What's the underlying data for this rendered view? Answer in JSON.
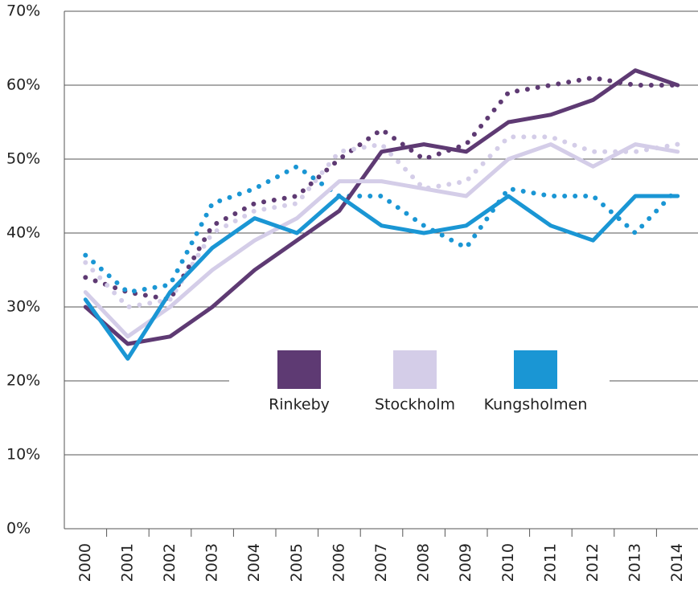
{
  "chart_data": {
    "type": "line",
    "categories": [
      "2000",
      "2001",
      "2002",
      "2003",
      "2004",
      "2005",
      "2006",
      "2007",
      "2008",
      "2009",
      "2010",
      "2011",
      "2012",
      "2013",
      "2014"
    ],
    "series": [
      {
        "name": "Rinkeby",
        "color": "#5e3a73",
        "values": [
          30,
          25,
          26,
          30,
          35,
          39,
          43,
          51,
          52,
          51,
          55,
          56,
          58,
          62,
          60
        ],
        "dotted_values": [
          34,
          32,
          31,
          41,
          44,
          45,
          50,
          54,
          50,
          52,
          59,
          60,
          61,
          60,
          60
        ]
      },
      {
        "name": "Stockholm",
        "color": "#d4cde8",
        "values": [
          32,
          26,
          30,
          35,
          39,
          42,
          47,
          47,
          46,
          45,
          50,
          52,
          49,
          52,
          51
        ],
        "dotted_values": [
          36,
          30,
          31,
          40,
          43,
          44,
          51,
          52,
          46,
          47,
          53,
          53,
          51,
          51,
          52
        ]
      },
      {
        "name": "Kungsholmen",
        "color": "#1a96d4",
        "values": [
          31,
          23,
          32,
          38,
          42,
          40,
          45,
          41,
          40,
          41,
          45,
          41,
          39,
          45,
          45
        ],
        "dotted_values": [
          37,
          32,
          33,
          44,
          46,
          49,
          45,
          45,
          41,
          38,
          46,
          45,
          45,
          40,
          46
        ]
      }
    ],
    "ylim": [
      0,
      70
    ],
    "yticks": [
      {
        "value": 0,
        "label": "0%"
      },
      {
        "value": 10,
        "label": "10%"
      },
      {
        "value": 20,
        "label": "20%"
      },
      {
        "value": 30,
        "label": "30%"
      },
      {
        "value": 40,
        "label": "40%"
      },
      {
        "value": 50,
        "label": "50%"
      },
      {
        "value": 60,
        "label": "60%"
      },
      {
        "value": 70,
        "label": "70%"
      }
    ],
    "grid": true
  }
}
